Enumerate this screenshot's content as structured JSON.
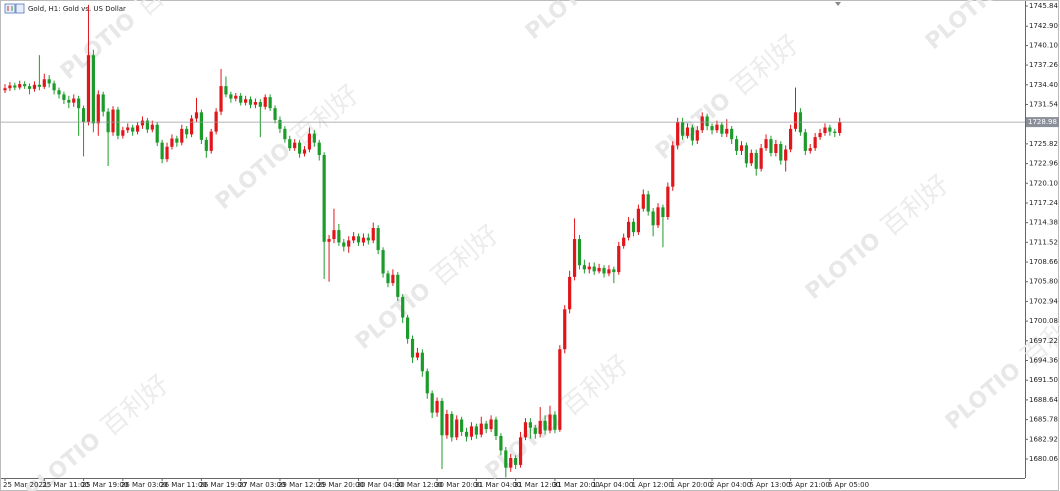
{
  "chart_data": {
    "type": "candlestick",
    "title": "Gold, H1:  Gold vs. US Dollar",
    "watermark_logo": "PLOTIO",
    "watermark_text": "百利好",
    "up_color": "#e0161b",
    "down_color": "#1c9b2a",
    "ylim": [
      1677.3,
      1746.42
    ],
    "yticks": [
      1745.84,
      {
        "value": 1742.9,
        "label": "1742.90"
      },
      {
        "value": 1740.1,
        "label": "1740.10"
      },
      1737.26,
      {
        "value": 1734.4,
        "label": "1734.40"
      },
      1731.54,
      1728.68,
      1725.82,
      1722.96,
      {
        "value": 1720.1,
        "label": "1720.10"
      },
      1717.24,
      1714.38,
      1711.52,
      1708.66,
      {
        "value": 1705.8,
        "label": "1705.80"
      },
      1702.94,
      1700.08,
      1697.22,
      1694.36,
      {
        "value": 1691.5,
        "label": "1691.50"
      },
      1688.64,
      1685.78,
      1682.92,
      1680.06
    ],
    "categories": [
      "25 Mar 2021",
      null,
      null,
      null,
      null,
      null,
      null,
      null,
      "25 Mar 11:00",
      null,
      null,
      null,
      null,
      null,
      null,
      null,
      "25 Mar 19:00",
      null,
      null,
      null,
      null,
      null,
      null,
      null,
      "26 Mar 03:00",
      null,
      null,
      null,
      null,
      null,
      null,
      null,
      "26 Mar 11:00",
      null,
      null,
      null,
      null,
      null,
      null,
      null,
      "26 Mar 19:00",
      null,
      null,
      null,
      null,
      null,
      null,
      null,
      "27 Mar 03:00",
      null,
      null,
      null,
      null,
      null,
      null,
      null,
      "29 Mar 12:00",
      null,
      null,
      null,
      null,
      null,
      null,
      null,
      "29 Mar 20:00",
      null,
      null,
      null,
      null,
      null,
      null,
      null,
      "30 Mar 04:00",
      null,
      null,
      null,
      null,
      null,
      null,
      null,
      "30 Mar 12:00",
      null,
      null,
      null,
      null,
      null,
      null,
      null,
      "30 Mar 20:00",
      null,
      null,
      null,
      null,
      null,
      null,
      null,
      "31 Mar 04:00",
      null,
      null,
      null,
      null,
      null,
      null,
      null,
      "31 Mar 12:00",
      null,
      null,
      null,
      null,
      null,
      null,
      null,
      "31 Mar 20:00",
      null,
      null,
      null,
      null,
      null,
      null,
      null,
      "1 Apr 04:00",
      null,
      null,
      null,
      null,
      null,
      null,
      null,
      "1 Apr 12:00",
      null,
      null,
      null,
      null,
      null,
      null,
      null,
      "1 Apr 20:00",
      null,
      null,
      null,
      null,
      null,
      null,
      null,
      "2 Apr 04:00",
      null,
      null,
      null,
      null,
      null,
      null,
      null,
      "5 Apr 13:00",
      null,
      null,
      null,
      null,
      null,
      null,
      null,
      "5 Apr 21:00",
      null,
      null,
      null,
      null,
      null,
      null,
      null,
      "6 Apr 05:00",
      null,
      null
    ],
    "candles": [
      [
        1733.6,
        1734.5,
        1733.2,
        1733.9
      ],
      [
        1733.9,
        1734.8,
        1733.5,
        1734.3
      ],
      [
        1734.3,
        1734.7,
        1733.6,
        1734.0
      ],
      [
        1734.0,
        1735.0,
        1733.7,
        1734.5
      ],
      [
        1734.5,
        1734.9,
        1733.8,
        1734.2
      ],
      [
        1734.2,
        1734.6,
        1733.0,
        1733.8
      ],
      [
        1733.8,
        1734.9,
        1733.4,
        1734.4
      ],
      [
        1734.4,
        1738.7,
        1733.6,
        1734.1
      ],
      [
        1734.1,
        1736.0,
        1733.8,
        1735.2
      ],
      [
        1735.2,
        1735.8,
        1734.0,
        1734.6
      ],
      [
        1734.6,
        1735.0,
        1733.0,
        1733.6
      ],
      [
        1733.6,
        1734.0,
        1732.4,
        1733.0
      ],
      [
        1733.0,
        1733.4,
        1731.6,
        1732.2
      ],
      [
        1732.2,
        1732.8,
        1731.0,
        1731.8
      ],
      [
        1731.8,
        1733.0,
        1731.2,
        1732.4
      ],
      [
        1732.4,
        1732.8,
        1727.0,
        1731.0
      ],
      [
        1731.0,
        1731.4,
        1724.0,
        1729.0
      ],
      [
        1729.0,
        1746.0,
        1728.5,
        1738.7
      ],
      [
        1738.7,
        1739.5,
        1727.5,
        1728.8
      ],
      [
        1728.8,
        1733.6,
        1727.0,
        1733.0
      ],
      [
        1733.0,
        1733.4,
        1729.8,
        1730.5
      ],
      [
        1730.5,
        1731.0,
        1722.6,
        1727.5
      ],
      [
        1727.5,
        1731.3,
        1727.0,
        1730.8
      ],
      [
        1730.8,
        1731.2,
        1726.5,
        1727.0
      ],
      [
        1727.0,
        1728.3,
        1726.6,
        1727.8
      ],
      [
        1727.8,
        1728.8,
        1727.4,
        1728.2
      ],
      [
        1728.2,
        1728.6,
        1727.0,
        1727.6
      ],
      [
        1727.6,
        1729.0,
        1727.2,
        1728.5
      ],
      [
        1728.5,
        1729.8,
        1728.0,
        1729.2
      ],
      [
        1729.2,
        1729.6,
        1727.4,
        1727.9
      ],
      [
        1727.9,
        1729.2,
        1727.5,
        1728.6
      ],
      [
        1728.6,
        1729.0,
        1725.5,
        1726.0
      ],
      [
        1726.0,
        1726.4,
        1723.0,
        1723.6
      ],
      [
        1723.6,
        1726.0,
        1723.2,
        1725.4
      ],
      [
        1725.4,
        1727.2,
        1725.0,
        1726.6
      ],
      [
        1726.6,
        1727.0,
        1725.4,
        1726.0
      ],
      [
        1726.0,
        1728.6,
        1725.6,
        1728.0
      ],
      [
        1728.0,
        1728.4,
        1726.6,
        1727.2
      ],
      [
        1727.2,
        1730.0,
        1726.8,
        1729.5
      ],
      [
        1729.5,
        1732.5,
        1729.0,
        1730.4
      ],
      [
        1730.4,
        1730.8,
        1725.8,
        1726.4
      ],
      [
        1726.4,
        1726.8,
        1723.8,
        1724.8
      ],
      [
        1724.8,
        1728.0,
        1724.4,
        1727.6
      ],
      [
        1727.6,
        1731.0,
        1727.2,
        1730.5
      ],
      [
        1730.5,
        1736.7,
        1730.0,
        1734.2
      ],
      [
        1734.2,
        1735.6,
        1732.6,
        1733.0
      ],
      [
        1733.0,
        1733.4,
        1731.8,
        1732.4
      ],
      [
        1732.4,
        1733.2,
        1732.0,
        1732.8
      ],
      [
        1732.8,
        1733.2,
        1731.4,
        1731.8
      ],
      [
        1731.8,
        1732.8,
        1731.4,
        1732.3
      ],
      [
        1732.3,
        1732.7,
        1731.0,
        1731.5
      ],
      [
        1731.5,
        1732.4,
        1731.0,
        1731.9
      ],
      [
        1731.9,
        1732.3,
        1726.8,
        1731.2
      ],
      [
        1731.2,
        1733.0,
        1730.8,
        1732.6
      ],
      [
        1732.6,
        1733.0,
        1730.6,
        1731.0
      ],
      [
        1731.0,
        1731.4,
        1728.8,
        1729.3
      ],
      [
        1729.3,
        1729.8,
        1727.4,
        1728.0
      ],
      [
        1728.0,
        1728.4,
        1726.0,
        1726.5
      ],
      [
        1726.5,
        1727.0,
        1724.8,
        1725.2
      ],
      [
        1725.2,
        1726.5,
        1724.8,
        1726.0
      ],
      [
        1726.0,
        1726.4,
        1723.8,
        1724.4
      ],
      [
        1724.4,
        1725.5,
        1724.0,
        1725.0
      ],
      [
        1725.0,
        1728.2,
        1724.6,
        1727.3
      ],
      [
        1727.3,
        1727.8,
        1725.4,
        1726.0
      ],
      [
        1726.0,
        1726.4,
        1723.4,
        1724.2
      ],
      [
        1724.2,
        1724.6,
        1706.2,
        1711.6
      ],
      [
        1711.6,
        1712.6,
        1705.8,
        1712.0
      ],
      [
        1712.0,
        1716.4,
        1711.4,
        1713.3
      ],
      [
        1713.3,
        1714.2,
        1711.0,
        1711.5
      ],
      [
        1711.5,
        1712.0,
        1710.2,
        1710.9
      ],
      [
        1710.9,
        1712.4,
        1710.0,
        1711.8
      ],
      [
        1711.8,
        1713.0,
        1711.4,
        1712.4
      ],
      [
        1712.4,
        1712.8,
        1711.0,
        1711.5
      ],
      [
        1711.5,
        1712.8,
        1711.0,
        1712.2
      ],
      [
        1712.2,
        1712.8,
        1711.2,
        1711.8
      ],
      [
        1711.8,
        1714.4,
        1711.4,
        1713.6
      ],
      [
        1713.6,
        1714.0,
        1709.8,
        1710.4
      ],
      [
        1710.4,
        1710.8,
        1706.4,
        1707.0
      ],
      [
        1707.0,
        1707.4,
        1705.0,
        1705.6
      ],
      [
        1705.6,
        1707.6,
        1705.2,
        1706.8
      ],
      [
        1706.8,
        1707.2,
        1703.0,
        1703.6
      ],
      [
        1703.6,
        1704.0,
        1699.8,
        1700.6
      ],
      [
        1700.6,
        1701.0,
        1696.8,
        1697.5
      ],
      [
        1697.5,
        1698.0,
        1694.0,
        1694.8
      ],
      [
        1694.8,
        1696.2,
        1694.4,
        1695.5
      ],
      [
        1695.5,
        1696.0,
        1692.0,
        1692.8
      ],
      [
        1692.8,
        1693.2,
        1688.8,
        1689.6
      ],
      [
        1689.6,
        1690.0,
        1686.0,
        1686.8
      ],
      [
        1686.8,
        1689.0,
        1686.2,
        1688.5
      ],
      [
        1688.5,
        1688.9,
        1678.6,
        1683.5
      ],
      [
        1683.5,
        1687.2,
        1683.0,
        1686.6
      ],
      [
        1686.6,
        1687.0,
        1682.6,
        1683.2
      ],
      [
        1683.2,
        1686.4,
        1682.8,
        1685.8
      ],
      [
        1685.8,
        1686.2,
        1683.4,
        1684.0
      ],
      [
        1684.0,
        1684.6,
        1682.6,
        1683.3
      ],
      [
        1683.3,
        1685.4,
        1682.8,
        1684.8
      ],
      [
        1684.8,
        1685.2,
        1683.0,
        1683.6
      ],
      [
        1683.6,
        1686.2,
        1683.2,
        1685.2
      ],
      [
        1685.2,
        1685.6,
        1683.8,
        1684.4
      ],
      [
        1684.4,
        1686.4,
        1684.0,
        1685.8
      ],
      [
        1685.8,
        1686.2,
        1682.8,
        1683.4
      ],
      [
        1683.4,
        1683.8,
        1680.6,
        1681.3
      ],
      [
        1681.3,
        1681.8,
        1677.4,
        1678.8
      ],
      [
        1678.8,
        1680.8,
        1678.2,
        1680.2
      ],
      [
        1680.2,
        1680.6,
        1678.6,
        1679.2
      ],
      [
        1679.2,
        1684.0,
        1678.8,
        1683.2
      ],
      [
        1683.2,
        1686.0,
        1682.8,
        1685.4
      ],
      [
        1685.4,
        1686.0,
        1683.0,
        1684.6
      ],
      [
        1684.6,
        1685.0,
        1683.0,
        1683.7
      ],
      [
        1683.7,
        1687.6,
        1683.2,
        1685.6
      ],
      [
        1685.6,
        1686.4,
        1683.6,
        1684.2
      ],
      [
        1684.2,
        1687.8,
        1683.8,
        1686.5
      ],
      [
        1686.5,
        1687.0,
        1683.8,
        1684.3
      ],
      [
        1684.3,
        1696.6,
        1684.0,
        1696.0
      ],
      [
        1696.0,
        1702.4,
        1695.4,
        1701.8
      ],
      [
        1701.8,
        1707.4,
        1701.2,
        1706.5
      ],
      [
        1706.5,
        1715.0,
        1706.0,
        1712.0
      ],
      [
        1712.0,
        1712.6,
        1707.6,
        1708.2
      ],
      [
        1708.2,
        1709.0,
        1707.0,
        1707.6
      ],
      [
        1707.6,
        1708.6,
        1707.0,
        1708.0
      ],
      [
        1708.0,
        1708.6,
        1706.8,
        1707.3
      ],
      [
        1707.3,
        1708.4,
        1707.0,
        1707.8
      ],
      [
        1707.8,
        1708.2,
        1706.4,
        1707.0
      ],
      [
        1707.0,
        1708.2,
        1706.6,
        1707.6
      ],
      [
        1707.6,
        1708.0,
        1705.6,
        1707.2
      ],
      [
        1707.2,
        1711.6,
        1706.8,
        1711.0
      ],
      [
        1711.0,
        1712.8,
        1710.6,
        1712.2
      ],
      [
        1712.2,
        1715.2,
        1711.8,
        1714.5
      ],
      [
        1714.5,
        1715.0,
        1712.4,
        1713.0
      ],
      [
        1713.0,
        1717.0,
        1712.6,
        1716.4
      ],
      [
        1716.4,
        1719.2,
        1716.0,
        1718.5
      ],
      [
        1718.5,
        1719.0,
        1715.4,
        1716.0
      ],
      [
        1716.0,
        1716.5,
        1712.4,
        1714.0
      ],
      [
        1714.0,
        1717.2,
        1713.6,
        1716.6
      ],
      [
        1716.6,
        1717.0,
        1710.8,
        1715.2
      ],
      [
        1715.2,
        1720.2,
        1714.8,
        1719.6
      ],
      [
        1719.6,
        1726.2,
        1719.0,
        1725.6
      ],
      [
        1725.6,
        1729.6,
        1725.0,
        1729.0
      ],
      [
        1729.0,
        1729.6,
        1726.4,
        1727.0
      ],
      [
        1727.0,
        1728.8,
        1726.6,
        1728.2
      ],
      [
        1728.2,
        1728.6,
        1725.6,
        1726.3
      ],
      [
        1726.3,
        1728.4,
        1725.8,
        1727.8
      ],
      [
        1727.8,
        1730.4,
        1727.4,
        1729.8
      ],
      [
        1729.8,
        1730.2,
        1727.8,
        1728.4
      ],
      [
        1728.4,
        1728.8,
        1727.2,
        1727.8
      ],
      [
        1727.8,
        1729.2,
        1727.4,
        1728.6
      ],
      [
        1728.6,
        1729.0,
        1726.8,
        1727.3
      ],
      [
        1727.3,
        1729.4,
        1726.8,
        1728.0
      ],
      [
        1728.0,
        1728.4,
        1725.8,
        1726.5
      ],
      [
        1726.5,
        1727.0,
        1724.2,
        1724.8
      ],
      [
        1724.8,
        1726.2,
        1724.2,
        1725.6
      ],
      [
        1725.6,
        1726.0,
        1722.4,
        1723.0
      ],
      [
        1723.0,
        1725.0,
        1722.6,
        1724.5
      ],
      [
        1724.5,
        1725.0,
        1721.2,
        1722.2
      ],
      [
        1722.2,
        1725.8,
        1721.8,
        1725.2
      ],
      [
        1725.2,
        1727.2,
        1724.8,
        1726.5
      ],
      [
        1726.5,
        1727.0,
        1724.0,
        1724.5
      ],
      [
        1724.5,
        1726.4,
        1724.0,
        1725.8
      ],
      [
        1725.8,
        1726.2,
        1722.8,
        1723.4
      ],
      [
        1723.4,
        1725.6,
        1721.8,
        1725.0
      ],
      [
        1725.0,
        1728.6,
        1724.6,
        1728.0
      ],
      [
        1728.0,
        1734.0,
        1727.6,
        1730.4
      ],
      [
        1730.4,
        1731.0,
        1727.0,
        1727.5
      ],
      [
        1727.5,
        1728.0,
        1724.2,
        1724.8
      ],
      [
        1724.8,
        1725.8,
        1724.4,
        1725.2
      ],
      [
        1725.2,
        1727.4,
        1724.8,
        1726.8
      ],
      [
        1726.8,
        1728.0,
        1726.4,
        1727.4
      ],
      [
        1727.4,
        1728.8,
        1727.0,
        1728.2
      ],
      [
        1728.2,
        1728.6,
        1727.0,
        1727.6
      ],
      [
        1727.6,
        1728.0,
        1726.8,
        1727.4
      ],
      [
        1727.4,
        1729.6,
        1727.0,
        1728.98
      ]
    ]
  }
}
